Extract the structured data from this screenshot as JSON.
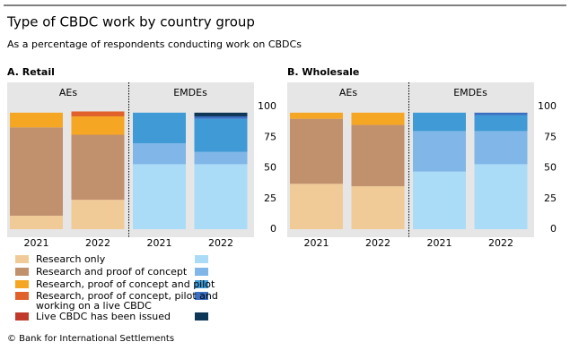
{
  "title": "Type of CBDC work by country group",
  "subtitle": "As a percentage of respondents conducting work on CBDCs",
  "legend": [
    {
      "name": [
        "Research only"
      ],
      "colors": [
        "#f0cb98",
        "#aadcf8"
      ]
    },
    {
      "name": [
        "Research and proof of concept"
      ],
      "colors": [
        "#c1906c",
        "#80b7e8"
      ]
    },
    {
      "name": [
        "Research, proof of concept and pilot"
      ],
      "colors": [
        "#f5a623",
        "#3f9ad6"
      ]
    },
    {
      "name": [
        "Research, proof of concept, pilot and",
        "working on a live CBDC"
      ],
      "colors": [
        "#e0622a",
        "#3a6fc2"
      ]
    },
    {
      "name": [
        "Live CBDC has been issued"
      ],
      "colors": [
        "#c0392b",
        "#0d3657"
      ]
    }
  ],
  "chart_data": [
    {
      "type": "bar",
      "stacked": true,
      "title": "A. Retail",
      "groups": [
        "AEs",
        "EMDEs"
      ],
      "categories": [
        "2021",
        "2022",
        "2021",
        "2022"
      ],
      "category_group": [
        0,
        0,
        1,
        1
      ],
      "ylim": [
        0,
        100
      ],
      "yticks": [
        0,
        25,
        50,
        75,
        100
      ],
      "series": [
        {
          "values": [
            11,
            24,
            53,
            53
          ]
        },
        {
          "values": [
            72,
            53,
            17,
            10
          ]
        },
        {
          "values": [
            12,
            15,
            25,
            27
          ]
        },
        {
          "values": [
            null,
            4,
            null,
            2
          ]
        },
        {
          "values": [
            null,
            null,
            null,
            3
          ]
        }
      ]
    },
    {
      "type": "bar",
      "stacked": true,
      "title": "B. Wholesale",
      "groups": [
        "AEs",
        "EMDEs"
      ],
      "categories": [
        "2021",
        "2022",
        "2021",
        "2022"
      ],
      "category_group": [
        0,
        0,
        1,
        1
      ],
      "ylim": [
        0,
        100
      ],
      "yticks": [
        0,
        25,
        50,
        75,
        100
      ],
      "series": [
        {
          "values": [
            37,
            35,
            47,
            53
          ]
        },
        {
          "values": [
            53,
            50,
            33,
            27
          ]
        },
        {
          "values": [
            5,
            10,
            15,
            13
          ]
        },
        {
          "values": [
            null,
            null,
            null,
            2
          ]
        },
        {
          "values": [
            null,
            null,
            null,
            null
          ]
        }
      ]
    }
  ],
  "footer": "© Bank for International Settlements"
}
